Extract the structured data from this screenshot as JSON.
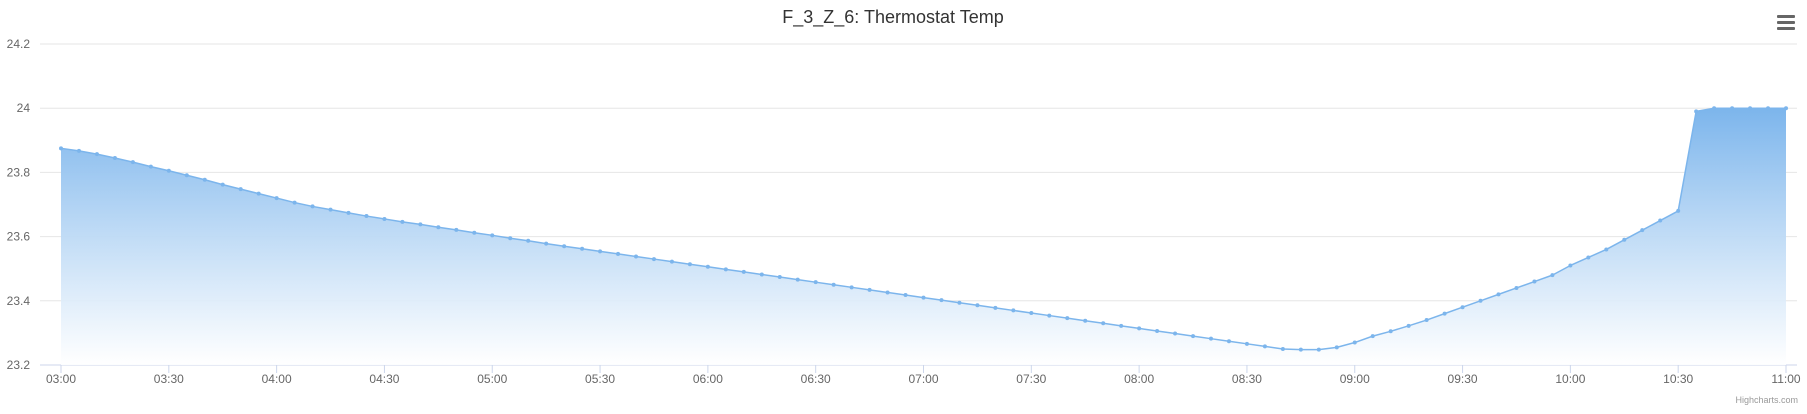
{
  "chart_data": {
    "type": "area",
    "title": "F_3_Z_6: Thermostat Temp",
    "ylim": [
      23.2,
      24.2
    ],
    "y_ticks": [
      23.2,
      23.4,
      23.6,
      23.8,
      24,
      24.2
    ],
    "y_tick_labels": [
      "23.2",
      "23.4",
      "23.6",
      "23.8",
      "24",
      "24.2"
    ],
    "xlim": [
      "03:00",
      "11:00"
    ],
    "x_tick_labels": [
      "03:00",
      "03:30",
      "04:00",
      "04:30",
      "05:00",
      "05:30",
      "06:00",
      "06:30",
      "07:00",
      "07:30",
      "08:00",
      "08:30",
      "09:00",
      "09:30",
      "10:00",
      "10:30",
      "11:00"
    ],
    "grid": true,
    "legend": "none",
    "colors": {
      "line": "#7cb5ec",
      "fill_top": "#7cb5ec",
      "fill_bottom": "#ffffff",
      "grid": "#e6e6e6",
      "axis": "#ccd6eb",
      "tick_label": "#666666",
      "title": "#333333"
    },
    "series": [
      {
        "x": [
          "03:00",
          "03:05",
          "03:10",
          "03:15",
          "03:20",
          "03:25",
          "03:30",
          "03:35",
          "03:40",
          "03:45",
          "03:50",
          "03:55",
          "04:00",
          "04:05",
          "04:10",
          "04:15",
          "04:20",
          "04:25",
          "04:30",
          "04:35",
          "04:40",
          "04:45",
          "04:50",
          "04:55",
          "05:00",
          "05:05",
          "05:10",
          "05:15",
          "05:20",
          "05:25",
          "05:30",
          "05:35",
          "05:40",
          "05:45",
          "05:50",
          "05:55",
          "06:00",
          "06:05",
          "06:10",
          "06:15",
          "06:20",
          "06:25",
          "06:30",
          "06:35",
          "06:40",
          "06:45",
          "06:50",
          "06:55",
          "07:00",
          "07:05",
          "07:10",
          "07:15",
          "07:20",
          "07:25",
          "07:30",
          "07:35",
          "07:40",
          "07:45",
          "07:50",
          "07:55",
          "08:00",
          "08:05",
          "08:10",
          "08:15",
          "08:20",
          "08:25",
          "08:30",
          "08:35",
          "08:40",
          "08:45",
          "08:50",
          "08:55",
          "09:00",
          "09:05",
          "09:10",
          "09:15",
          "09:20",
          "09:25",
          "09:30",
          "09:35",
          "09:40",
          "09:45",
          "09:50",
          "09:55",
          "10:00",
          "10:05",
          "10:10",
          "10:15",
          "10:20",
          "10:25",
          "10:30",
          "10:35",
          "10:40",
          "10:45",
          "10:50",
          "10:55",
          "11:00"
        ],
        "values": [
          23.875,
          23.867,
          23.857,
          23.845,
          23.832,
          23.818,
          23.805,
          23.791,
          23.777,
          23.762,
          23.748,
          23.734,
          23.72,
          23.706,
          23.694,
          23.684,
          23.674,
          23.664,
          23.655,
          23.646,
          23.638,
          23.629,
          23.621,
          23.612,
          23.604,
          23.595,
          23.587,
          23.578,
          23.57,
          23.562,
          23.554,
          23.546,
          23.538,
          23.53,
          23.522,
          23.514,
          23.506,
          23.498,
          23.49,
          23.482,
          23.474,
          23.466,
          23.458,
          23.45,
          23.442,
          23.434,
          23.426,
          23.418,
          23.41,
          23.402,
          23.394,
          23.386,
          23.378,
          23.37,
          23.362,
          23.354,
          23.346,
          23.338,
          23.33,
          23.322,
          23.314,
          23.306,
          23.298,
          23.29,
          23.282,
          23.274,
          23.266,
          23.258,
          23.25,
          23.248,
          23.248,
          23.255,
          23.27,
          23.29,
          23.305,
          23.322,
          23.34,
          23.36,
          23.38,
          23.4,
          23.42,
          23.44,
          23.46,
          23.48,
          23.51,
          23.535,
          23.56,
          23.59,
          23.62,
          23.65,
          23.68,
          23.99,
          24,
          24,
          24,
          24,
          24
        ]
      }
    ]
  },
  "credits": "Highcharts.com"
}
